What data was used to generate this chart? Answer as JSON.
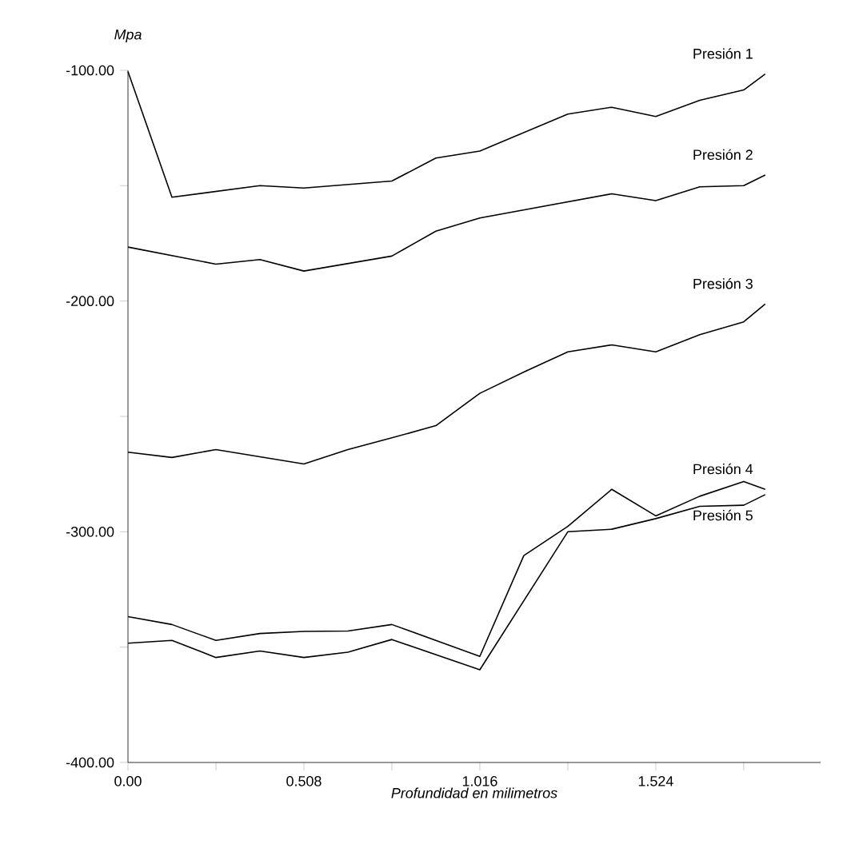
{
  "chart_data": {
    "type": "line",
    "xlabel": "Profundidad en milimetros",
    "ylabel": "Mpa",
    "xlim": [
      0,
      2.0
    ],
    "ylim": [
      -400,
      -100
    ],
    "xticks": [
      {
        "value": 0,
        "label": "0.00"
      },
      {
        "value": 0.254,
        "label": null
      },
      {
        "value": 0.508,
        "label": "0.508"
      },
      {
        "value": 0.762,
        "label": null
      },
      {
        "value": 1.016,
        "label": "1.016"
      },
      {
        "value": 1.27,
        "label": null
      },
      {
        "value": 1.524,
        "label": "1.524"
      },
      {
        "value": 1.778,
        "label": null
      }
    ],
    "yticks": [
      {
        "value": -100,
        "label": "-100.00"
      },
      {
        "value": -150,
        "label": null
      },
      {
        "value": -200,
        "label": "-200.00"
      },
      {
        "value": -250,
        "label": null
      },
      {
        "value": -300,
        "label": "-300.00"
      },
      {
        "value": -350,
        "label": null
      },
      {
        "value": -400,
        "label": "-400.00"
      }
    ],
    "series": [
      {
        "name": "Presión 1",
        "color": "#000000",
        "x": [
          0,
          0.127,
          0.381,
          0.508,
          0.762,
          0.889,
          1.016,
          1.143,
          1.27,
          1.397,
          1.524,
          1.651,
          1.778,
          1.84
        ],
        "values": [
          -100.5,
          -155,
          -150,
          -151,
          -148,
          -138,
          -135,
          -127,
          -119,
          -116,
          -120,
          -113,
          -108.5,
          -101.6
        ]
      },
      {
        "name": "Presión 2",
        "color": "#000000",
        "x": [
          0,
          0.254,
          0.381,
          0.508,
          0.762,
          0.889,
          1.016,
          1.397,
          1.524,
          1.651,
          1.778,
          1.84
        ],
        "values": [
          -176.6,
          -184,
          -182,
          -187,
          -180.5,
          -169.7,
          -164,
          -153.5,
          -156.5,
          -150.5,
          -150,
          -145.4
        ]
      },
      {
        "name": "Presión 3",
        "color": "#000000",
        "x": [
          0,
          0.127,
          0.254,
          0.508,
          0.635,
          0.762,
          0.889,
          1.016,
          1.143,
          1.27,
          1.397,
          1.524,
          1.651,
          1.778,
          1.84
        ],
        "values": [
          -265.5,
          -267.8,
          -264.4,
          -270.6,
          -264.4,
          -259.3,
          -254,
          -240,
          -230.8,
          -222,
          -219,
          -222,
          -214.6,
          -209,
          -201.3
        ]
      },
      {
        "name": "Presión 4",
        "color": "#000000",
        "x": [
          0,
          0.127,
          0.254,
          0.381,
          0.508,
          0.635,
          0.762,
          1.016,
          1.143,
          1.27,
          1.397,
          1.524,
          1.651,
          1.778,
          1.84
        ],
        "values": [
          -336.8,
          -340.2,
          -347.1,
          -344.1,
          -343.2,
          -343,
          -340.2,
          -354,
          -310.3,
          -297.7,
          -281.6,
          -293.1,
          -284.6,
          -278.2,
          -281.6
        ]
      },
      {
        "name": "Presión 5",
        "color": "#000000",
        "x": [
          0,
          0.127,
          0.254,
          0.381,
          0.508,
          0.635,
          0.762,
          1.016,
          1.27,
          1.397,
          1.524,
          1.651,
          1.778,
          1.84
        ],
        "values": [
          -348.3,
          -347.1,
          -354.5,
          -351.7,
          -354.5,
          -352.2,
          -346.7,
          -359.8,
          -300,
          -298.9,
          -294.3,
          -289,
          -288.5,
          -283.9
        ]
      }
    ]
  }
}
